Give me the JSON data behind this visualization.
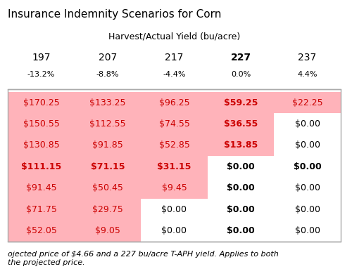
{
  "title": "Insurance Indemnity Scenarios for Corn",
  "col_header_label": "Harvest/Actual Yield (bu/acre)",
  "col_yields": [
    "197",
    "207",
    "217",
    "227",
    "237"
  ],
  "col_pcts": [
    "-13.2%",
    "-8.8%",
    "-4.4%",
    "0.0%",
    "4.4%"
  ],
  "col_bold": [
    false,
    false,
    false,
    true,
    false
  ],
  "table_data": [
    [
      "$170.25",
      "$133.25",
      "$96.25",
      "$59.25",
      "$22.25"
    ],
    [
      "$150.55",
      "$112.55",
      "$74.55",
      "$36.55",
      "$0.00"
    ],
    [
      "$130.85",
      "$91.85",
      "$52.85",
      "$13.85",
      "$0.00"
    ],
    [
      "$111.15",
      "$71.15",
      "$31.15",
      "$0.00",
      "$0.00"
    ],
    [
      "$91.45",
      "$50.45",
      "$9.45",
      "$0.00",
      "$0.00"
    ],
    [
      "$71.75",
      "$29.75",
      "$0.00",
      "$0.00",
      "$0.00"
    ],
    [
      "$52.05",
      "$9.05",
      "$0.00",
      "$0.00",
      "$0.00"
    ]
  ],
  "row_bold": [
    false,
    false,
    false,
    true,
    false,
    false,
    false
  ],
  "pink_cells": [
    [
      true,
      true,
      true,
      true,
      true
    ],
    [
      true,
      true,
      true,
      true,
      false
    ],
    [
      true,
      true,
      true,
      true,
      false
    ],
    [
      true,
      true,
      true,
      false,
      false
    ],
    [
      true,
      true,
      true,
      false,
      false
    ],
    [
      true,
      true,
      false,
      false,
      false
    ],
    [
      true,
      true,
      false,
      false,
      false
    ]
  ],
  "footer_text": "ojected price of $4.66 and a 227 bu/acre T-APH yield. Applies to both\nthe projected price.",
  "pink_color": "#FFB3BA",
  "red_text": "#CC0000",
  "black_text": "#000000",
  "bg_color": "#FFFFFF",
  "border_color": "#AAAAAA",
  "title_fontsize": 11,
  "header_fontsize": 9,
  "cell_fontsize": 9,
  "footer_fontsize": 8
}
